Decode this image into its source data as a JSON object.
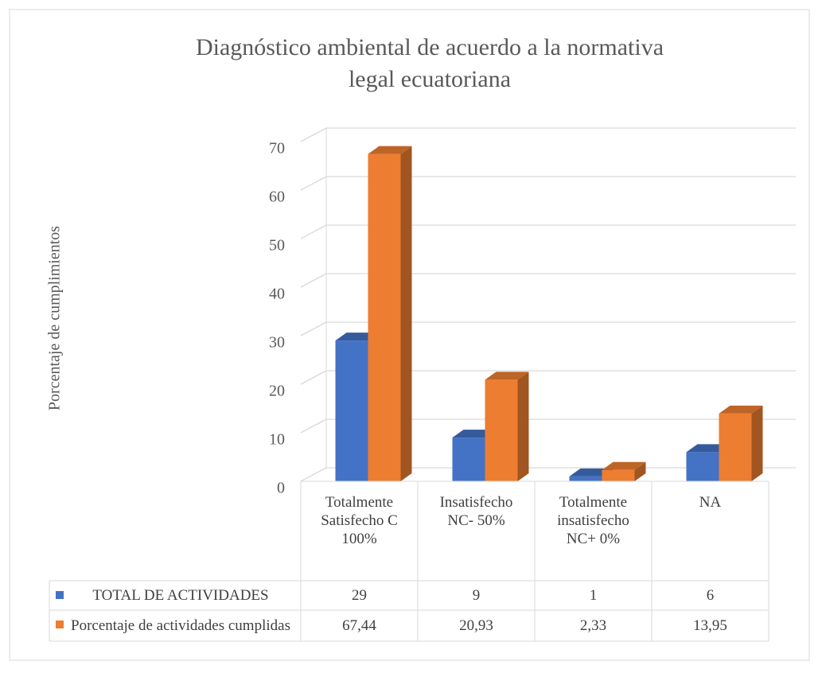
{
  "chart_data": {
    "type": "bar3d",
    "title": "Diagnóstico ambiental de acuerdo a la normativa legal ecuatoriana",
    "y_label": "Porcentaje de cumplimientos",
    "categories": [
      "Totalmente Satisfecho C 100%",
      "Insatisfecho NC- 50%",
      "Totalmente insatisfecho NC+ 0%",
      "NA"
    ],
    "series": [
      {
        "name": "TOTAL DE ACTIVIDADES",
        "color": "#4472c4",
        "values": [
          29,
          9,
          1,
          6
        ]
      },
      {
        "name": "Porcentaje de actividades cumplidas",
        "color": "#ed7d31",
        "values": [
          67.44,
          20.93,
          2.33,
          13.95
        ],
        "value_labels": [
          "67,44",
          "20,93",
          "2,33",
          "13,95"
        ]
      }
    ],
    "ylim": [
      0,
      70
    ],
    "yticks": [
      0,
      10,
      20,
      30,
      40,
      50,
      60,
      70
    ],
    "grid": true,
    "data_table": true
  }
}
